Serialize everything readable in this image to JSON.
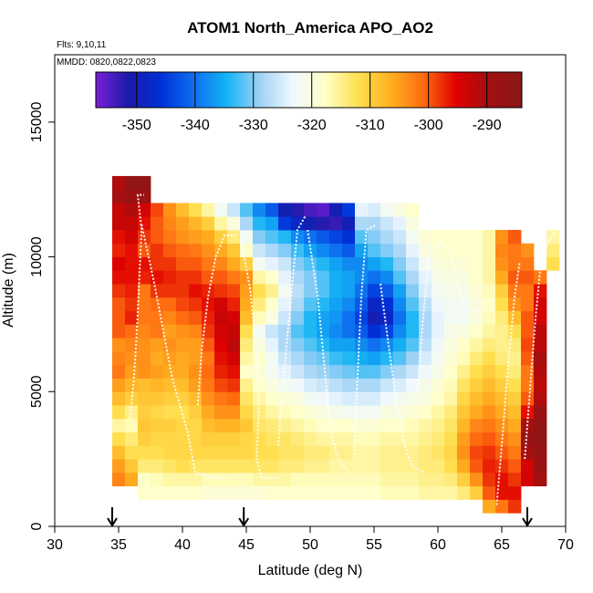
{
  "chart_data": {
    "type": "heatmap",
    "title": "ATOM1 North_America APO_AO2",
    "subtitle_flights": "Flts: 9,10,11",
    "subtitle_dates": "MMDD: 0820,0822,0823",
    "xlabel": "Latitude (deg N)",
    "ylabel": "Altitude (m)",
    "xlim": [
      30,
      70
    ],
    "ylim": [
      0,
      17500
    ],
    "x_ticks": [
      30,
      35,
      40,
      45,
      50,
      55,
      60,
      65,
      70
    ],
    "y_ticks": [
      0,
      5000,
      10000,
      15000
    ],
    "colorbar": {
      "range": [
        -357,
        -284
      ],
      "ticks": [
        -350,
        -340,
        -330,
        -320,
        -310,
        -300,
        -290
      ],
      "colors": [
        "#7a1fd9",
        "#1a1aa8",
        "#0030d8",
        "#0e6ff0",
        "#14b4f5",
        "#9fd2f5",
        "#f0f8ff",
        "#ffffc8",
        "#ffe050",
        "#ffb020",
        "#ff6a10",
        "#e00000",
        "#a01010",
        "#8a1818"
      ]
    },
    "arrows_latitude": [
      34.5,
      44.8,
      67.0
    ],
    "cell": {
      "dlat": 1.0,
      "dalt": 500
    },
    "columns": [
      {
        "lat": 35,
        "alt_min": 1500,
        "values": [
          -303,
          -305,
          -308,
          -312,
          -316,
          -312,
          -308,
          -305,
          -302,
          -303,
          -304,
          -300,
          -300,
          -300,
          -298,
          -296,
          -295,
          -297,
          -296,
          -293,
          -293,
          -290,
          -291
        ]
      },
      {
        "lat": 36,
        "alt_min": 1500,
        "values": [
          -306,
          -309,
          -312,
          -314,
          -317,
          -315,
          -310,
          -307,
          -305,
          -304,
          -303,
          -301,
          -297,
          -298,
          -297,
          -296,
          -296,
          -296,
          -294,
          -293,
          -291,
          -288,
          -286
        ]
      },
      {
        "lat": 37,
        "alt_min": 1000,
        "values": [
          -318,
          -318,
          -314,
          -312,
          -310,
          -309,
          -310,
          -309,
          -308,
          -304,
          -304,
          -304,
          -303,
          -302,
          -302,
          -302,
          -297,
          -296,
          -300,
          -298,
          -296,
          -294,
          -288,
          -286
        ]
      },
      {
        "lat": 38,
        "alt_min": 1000,
        "values": [
          -318,
          -317,
          -314,
          -312,
          -311,
          -310,
          -311,
          -309,
          -307,
          -305,
          -306,
          -305,
          -302,
          -302,
          -301,
          -298,
          -296,
          -298,
          -298,
          -300,
          -300,
          -299
        ]
      },
      {
        "lat": 39,
        "alt_min": 1000,
        "values": [
          -318,
          -316,
          -313,
          -311,
          -311,
          -310,
          -312,
          -310,
          -308,
          -306,
          -305,
          -304,
          -305,
          -303,
          -301,
          -298,
          -297,
          -298,
          -300,
          -302,
          -303,
          -304
        ]
      },
      {
        "lat": 40,
        "alt_min": 1000,
        "values": [
          -318,
          -316,
          -312,
          -311,
          -311,
          -311,
          -312,
          -310,
          -308,
          -306,
          -306,
          -305,
          -304,
          -301,
          -299,
          -298,
          -298,
          -300,
          -301,
          -304,
          -305,
          -308
        ]
      },
      {
        "lat": 41,
        "alt_min": 1000,
        "values": [
          -318,
          -316,
          -313,
          -311,
          -311,
          -311,
          -310,
          -308,
          -305,
          -304,
          -305,
          -305,
          -303,
          -300,
          -298,
          -296,
          -298,
          -300,
          -302,
          -305,
          -307,
          -312
        ]
      },
      {
        "lat": 42,
        "alt_min": 1000,
        "values": [
          -319,
          -317,
          -313,
          -311,
          -310,
          -308,
          -306,
          -304,
          -302,
          -301,
          -302,
          -300,
          -298,
          -297,
          -296,
          -297,
          -300,
          -302,
          -304,
          -306,
          -310,
          -316
        ]
      },
      {
        "lat": 43,
        "alt_min": 1000,
        "values": [
          -319,
          -317,
          -313,
          -311,
          -310,
          -307,
          -304,
          -302,
          -299,
          -297,
          -296,
          -295,
          -294,
          -293,
          -294,
          -298,
          -300,
          -303,
          -306,
          -310,
          -316,
          -322
        ]
      },
      {
        "lat": 44,
        "alt_min": 1000,
        "values": [
          -319,
          -317,
          -313,
          -311,
          -310,
          -307,
          -304,
          -301,
          -298,
          -296,
          -294,
          -292,
          -293,
          -294,
          -297,
          -299,
          -302,
          -306,
          -309,
          -314,
          -320,
          -326
        ]
      },
      {
        "lat": 45,
        "alt_min": 1000,
        "values": [
          -319,
          -317,
          -313,
          -311,
          -311,
          -309,
          -311,
          -313,
          -315,
          -318,
          -316,
          -314,
          -312,
          -308,
          -306,
          -305,
          -304,
          -310,
          -318,
          -322,
          -328,
          -332
        ]
      },
      {
        "lat": 46,
        "alt_min": 1000,
        "values": [
          -319,
          -316,
          -313,
          -312,
          -312,
          -313,
          -314,
          -316,
          -318,
          -319,
          -318,
          -320,
          -322,
          -317,
          -314,
          -312,
          -316,
          -322,
          -326,
          -330,
          -334,
          -338
        ]
      },
      {
        "lat": 47,
        "alt_min": 1000,
        "values": [
          -318,
          -316,
          -313,
          -312,
          -313,
          -314,
          -316,
          -318,
          -320,
          -322,
          -322,
          -324,
          -326,
          -320,
          -318,
          -315,
          -318,
          -324,
          -328,
          -332,
          -336,
          -342
        ]
      },
      {
        "lat": 48,
        "alt_min": 1000,
        "values": [
          -318,
          -316,
          -314,
          -313,
          -313,
          -315,
          -317,
          -319,
          -322,
          -324,
          -326,
          -328,
          -328,
          -326,
          -324,
          -322,
          -324,
          -326,
          -330,
          -334,
          -345,
          -350
        ]
      },
      {
        "lat": 49,
        "alt_min": 1000,
        "values": [
          -318,
          -317,
          -314,
          -313,
          -314,
          -316,
          -318,
          -320,
          -323,
          -326,
          -328,
          -330,
          -332,
          -330,
          -328,
          -327,
          -328,
          -330,
          -333,
          -338,
          -348,
          -352
        ]
      },
      {
        "lat": 50,
        "alt_min": 1000,
        "values": [
          -318,
          -317,
          -315,
          -314,
          -315,
          -317,
          -319,
          -322,
          -325,
          -328,
          -330,
          -332,
          -334,
          -334,
          -332,
          -330,
          -330,
          -332,
          -336,
          -340,
          -350,
          -354
        ]
      },
      {
        "lat": 51,
        "alt_min": 1000,
        "values": [
          -318,
          -317,
          -315,
          -314,
          -316,
          -318,
          -320,
          -323,
          -326,
          -329,
          -331,
          -334,
          -336,
          -336,
          -334,
          -332,
          -332,
          -334,
          -338,
          -342,
          -352,
          -355
        ]
      },
      {
        "lat": 52,
        "alt_min": 1000,
        "values": [
          -318,
          -317,
          -316,
          -315,
          -316,
          -318,
          -321,
          -324,
          -327,
          -330,
          -333,
          -336,
          -338,
          -337,
          -336,
          -335,
          -335,
          -336,
          -340,
          -344,
          -353,
          -350
        ]
      },
      {
        "lat": 53,
        "alt_min": 1000,
        "values": [
          -318,
          -317,
          -316,
          -315,
          -316,
          -318,
          -322,
          -325,
          -328,
          -331,
          -334,
          -336,
          -340,
          -340,
          -338,
          -336,
          -336,
          -338,
          -342,
          -346,
          -350,
          -345
        ]
      },
      {
        "lat": 54,
        "alt_min": 1000,
        "values": [
          -318,
          -317,
          -316,
          -316,
          -317,
          -319,
          -322,
          -325,
          -328,
          -332,
          -335,
          -338,
          -342,
          -344,
          -342,
          -340,
          -338,
          -338,
          -336,
          -332,
          -328,
          -324
        ]
      },
      {
        "lat": 55,
        "alt_min": 1000,
        "values": [
          -318,
          -317,
          -316,
          -316,
          -317,
          -319,
          -322,
          -325,
          -328,
          -332,
          -336,
          -340,
          -346,
          -350,
          -348,
          -344,
          -340,
          -336,
          -332,
          -330,
          -328,
          -325
        ]
      },
      {
        "lat": 56,
        "alt_min": 1000,
        "values": [
          -317,
          -316,
          -315,
          -315,
          -316,
          -318,
          -320,
          -323,
          -326,
          -330,
          -334,
          -338,
          -344,
          -348,
          -346,
          -342,
          -338,
          -334,
          -330,
          -328,
          -326,
          -322
        ]
      },
      {
        "lat": 57,
        "alt_min": 1000,
        "values": [
          -317,
          -316,
          -315,
          -315,
          -316,
          -318,
          -320,
          -322,
          -325,
          -328,
          -332,
          -335,
          -338,
          -340,
          -338,
          -336,
          -332,
          -330,
          -328,
          -326,
          -324,
          -320
        ]
      },
      {
        "lat": 58,
        "alt_min": 1000,
        "values": [
          -317,
          -316,
          -315,
          -315,
          -316,
          -317,
          -319,
          -321,
          -323,
          -326,
          -329,
          -332,
          -334,
          -334,
          -332,
          -330,
          -328,
          -326,
          -324,
          -322,
          -320,
          -318
        ]
      },
      {
        "lat": 59,
        "alt_min": 1000,
        "values": [
          -316,
          -315,
          -314,
          -314,
          -315,
          -316,
          -318,
          -320,
          -321,
          -323,
          -325,
          -327,
          -328,
          -328,
          -327,
          -325,
          -324,
          -322,
          -320,
          -319
        ]
      },
      {
        "lat": 60,
        "alt_min": 1000,
        "values": [
          -316,
          -315,
          -314,
          -313,
          -314,
          -315,
          -316,
          -318,
          -319,
          -321,
          -322,
          -323,
          -324,
          -324,
          -323,
          -322,
          -321,
          -320,
          -319,
          -318
        ]
      },
      {
        "lat": 61,
        "alt_min": 1000,
        "values": [
          -316,
          -314,
          -312,
          -311,
          -312,
          -313,
          -314,
          -316,
          -317,
          -318,
          -319,
          -320,
          -321,
          -322,
          -322,
          -321,
          -320,
          -319,
          -318,
          -318
        ]
      },
      {
        "lat": 62,
        "alt_min": 1000,
        "values": [
          -314,
          -310,
          -306,
          -304,
          -305,
          -307,
          -309,
          -311,
          -313,
          -315,
          -317,
          -318,
          -320,
          -322,
          -322,
          -321,
          -320,
          -319,
          -318,
          -318
        ]
      },
      {
        "lat": 63,
        "alt_min": 1000,
        "values": [
          -310,
          -304,
          -300,
          -299,
          -301,
          -303,
          -306,
          -308,
          -310,
          -312,
          -314,
          -316,
          -318,
          -320,
          -320,
          -319,
          -318,
          -318,
          -318,
          -318
        ]
      },
      {
        "lat": 64,
        "alt_min": 500,
        "values": [
          -306,
          -300,
          -298,
          -297,
          -298,
          -300,
          -302,
          -304,
          -306,
          -308,
          -310,
          -312,
          -314,
          -316,
          -317,
          -318,
          -317,
          -316,
          -316,
          -316,
          -316
        ]
      },
      {
        "lat": 65,
        "alt_min": 500,
        "values": [
          -302,
          -296,
          -296,
          -298,
          -300,
          -302,
          -304,
          -306,
          -308,
          -310,
          -312,
          -314,
          -315,
          -315,
          -314,
          -312,
          -310,
          -306,
          -304,
          -303,
          -304
        ]
      },
      {
        "lat": 66,
        "alt_min": 500,
        "values": [
          -298,
          -296,
          -298,
          -300,
          -302,
          -304,
          -306,
          -308,
          -310,
          -312,
          -314,
          -315,
          -314,
          -312,
          -308,
          -304,
          -302,
          -300,
          -302,
          -302,
          -300
        ]
      },
      {
        "lat": 67,
        "alt_min": 1500,
        "values": [
          -294,
          -294,
          -290,
          -288,
          -290,
          -296,
          -300,
          -302,
          -302,
          -300,
          -299,
          -300,
          -300,
          -302,
          -302,
          -300,
          -302,
          -304
        ]
      },
      {
        "lat": 68,
        "alt_min": 1500,
        "values": [
          -290,
          -288,
          -287,
          -286,
          -286,
          -288,
          -291,
          -292,
          -291,
          -290,
          -292,
          -292,
          -294,
          -294,
          -296,
          -302
        ]
      },
      {
        "lat": 69,
        "alt_min": 9500,
        "values": [
          -312,
          -314,
          -316
        ]
      }
    ],
    "flight_tracks": [
      [
        [
          35.9,
          4000
        ],
        [
          36.2,
          5500
        ],
        [
          36.4,
          7000
        ],
        [
          36.6,
          9000
        ],
        [
          36.8,
          11000
        ],
        [
          36.5,
          12300
        ],
        [
          37.0,
          12300
        ]
      ],
      [
        [
          36.8,
          11200
        ],
        [
          37.8,
          9000
        ],
        [
          38.6,
          7000
        ],
        [
          39.2,
          5500
        ],
        [
          39.8,
          4500
        ],
        [
          40.4,
          3500
        ],
        [
          41.0,
          2000
        ],
        [
          42.5,
          1800
        ],
        [
          43.5,
          1800
        ]
      ],
      [
        [
          41.2,
          4500
        ],
        [
          41.5,
          6500
        ],
        [
          42.0,
          8500
        ],
        [
          42.6,
          10000
        ],
        [
          43.3,
          10800
        ],
        [
          44.2,
          10800
        ]
      ],
      [
        [
          44.6,
          10600
        ],
        [
          45.3,
          8800
        ],
        [
          45.8,
          6500
        ],
        [
          46.0,
          4500
        ],
        [
          45.8,
          2500
        ],
        [
          46.2,
          1800
        ],
        [
          47.5,
          1800
        ]
      ],
      [
        [
          47.5,
          3000
        ],
        [
          48.0,
          6000
        ],
        [
          48.5,
          8500
        ],
        [
          49.0,
          11000
        ],
        [
          49.6,
          11500
        ]
      ],
      [
        [
          49.8,
          11000
        ],
        [
          50.6,
          8500
        ],
        [
          51.1,
          6000
        ],
        [
          51.6,
          3500
        ],
        [
          52.2,
          2500
        ],
        [
          53.0,
          2000
        ]
      ],
      [
        [
          53.4,
          2500
        ],
        [
          53.7,
          5500
        ],
        [
          54.0,
          8500
        ],
        [
          54.4,
          11000
        ],
        [
          55.2,
          11200
        ]
      ],
      [
        [
          55.5,
          9000
        ],
        [
          56.2,
          6500
        ],
        [
          56.8,
          4500
        ],
        [
          57.4,
          3000
        ],
        [
          58.0,
          2200
        ],
        [
          59.0,
          2000
        ]
      ],
      [
        [
          58.4,
          5000
        ],
        [
          58.8,
          7500
        ],
        [
          59.3,
          10000
        ],
        [
          60.2,
          10600
        ],
        [
          61.0,
          10200
        ]
      ],
      [
        [
          61.0,
          10200
        ],
        [
          61.6,
          9000
        ],
        [
          62.2,
          8000
        ],
        [
          63.4,
          8000
        ]
      ],
      [
        [
          64.6,
          800
        ],
        [
          65.0,
          3000
        ],
        [
          65.5,
          6000
        ],
        [
          66.0,
          8500
        ],
        [
          66.4,
          9800
        ]
      ],
      [
        [
          66.8,
          2500
        ],
        [
          67.2,
          5000
        ],
        [
          67.6,
          7500
        ],
        [
          68.0,
          9500
        ],
        [
          68.6,
          10500
        ],
        [
          69.5,
          11200
        ]
      ]
    ]
  }
}
